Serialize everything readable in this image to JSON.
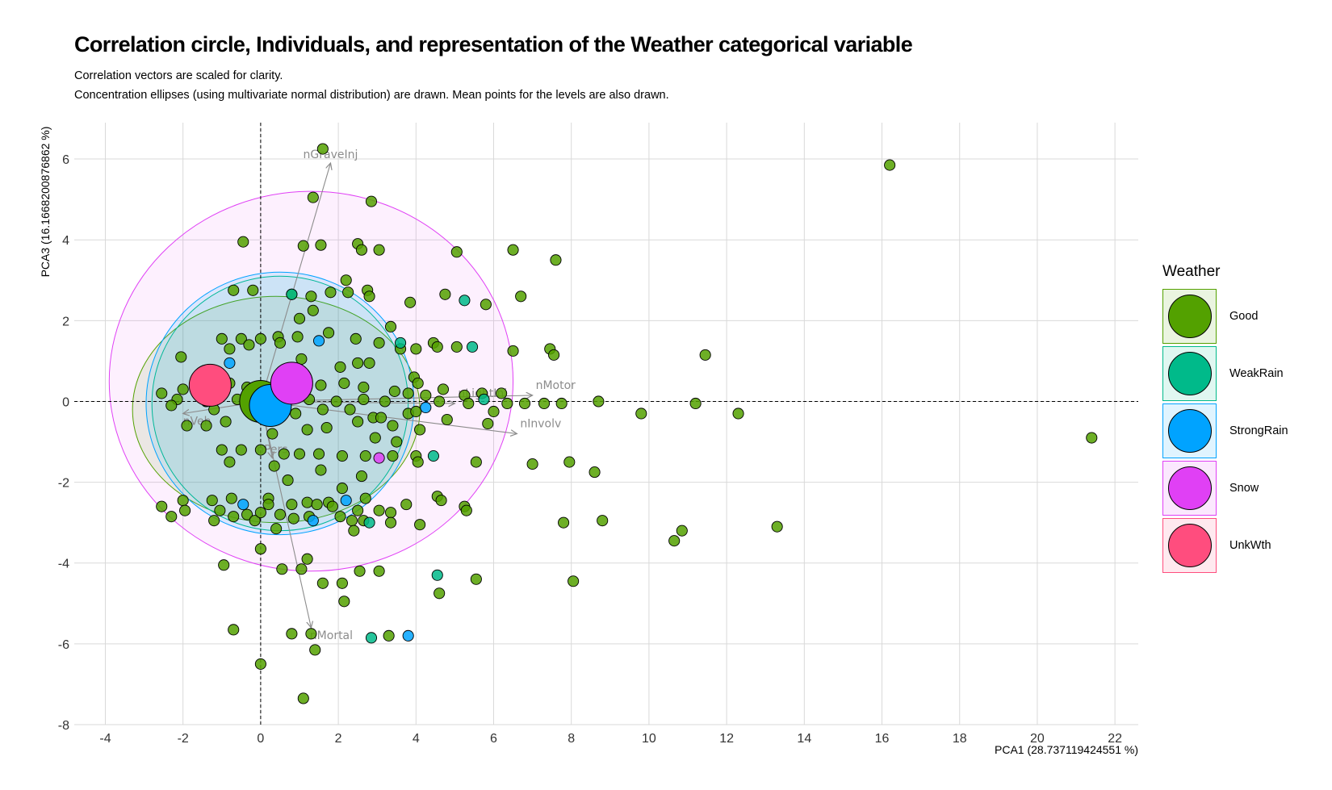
{
  "title": "Correlation circle, Individuals, and representation of the Weather categorical variable",
  "subtitle_lines": [
    "Correlation vectors are scaled for clarity.",
    "Concentration ellipses (using multivariate normal distribution) are drawn. Mean points for the levels are also drawn."
  ],
  "chart_data": {
    "type": "scatter",
    "title": "Correlation circle, Individuals, and representation of the Weather categorical variable",
    "xlabel": "PCA1 (28.737119424551 %)",
    "ylabel": "PCA3 (16.1668200876862 %)",
    "xlim": [
      -4.8,
      22.6
    ],
    "ylim": [
      -8.0,
      6.9
    ],
    "x_ticks": [
      -4,
      -2,
      0,
      2,
      4,
      6,
      8,
      10,
      12,
      14,
      16,
      18,
      20,
      22
    ],
    "y_ticks": [
      -8,
      -6,
      -4,
      -2,
      0,
      2,
      4,
      6
    ],
    "grid": true,
    "legend_title": "Weather",
    "legend_position": "right",
    "levels": [
      {
        "name": "Good",
        "color": "#53A100"
      },
      {
        "name": "WeakRain",
        "color": "#00BA8A"
      },
      {
        "name": "StrongRain",
        "color": "#00A3FF"
      },
      {
        "name": "Snow",
        "color": "#E040F5"
      },
      {
        "name": "UnkWth",
        "color": "#FF4D7E"
      }
    ],
    "variables": [
      {
        "name": "nGraveInj",
        "x": 1.8,
        "y": 5.9
      },
      {
        "name": "nMotor",
        "x": 7.0,
        "y": 0.15
      },
      {
        "name": "nInvolv",
        "x": 6.6,
        "y": -0.8
      },
      {
        "name": "nMortal",
        "x": 1.3,
        "y": -5.6
      },
      {
        "name": "nLightInj",
        "x": 5.0,
        "y": -0.05
      },
      {
        "name": "nPers",
        "x": 0.3,
        "y": -1.4
      },
      {
        "name": "nVeh",
        "x": -2.0,
        "y": -0.3
      }
    ],
    "ellipses": [
      {
        "level": "Snow",
        "cx": 1.3,
        "cy": 0.5,
        "rx": 5.2,
        "ry": 4.7
      },
      {
        "level": "Good",
        "cx": 0.4,
        "cy": -0.2,
        "rx": 3.7,
        "ry": 2.8
      },
      {
        "level": "WeakRain",
        "cx": 0.5,
        "cy": -0.05,
        "rx": 3.3,
        "ry": 3.15
      },
      {
        "level": "StrongRain",
        "cx": 0.5,
        "cy": -0.05,
        "rx": 3.45,
        "ry": 3.25
      }
    ],
    "means": [
      {
        "level": "UnkWth",
        "x": -1.3,
        "y": 0.4
      },
      {
        "level": "Good",
        "x": 0.0,
        "y": 0.0
      },
      {
        "level": "StrongRain",
        "x": 0.25,
        "y": -0.1
      },
      {
        "level": "Snow",
        "x": 0.8,
        "y": 0.45
      }
    ],
    "points": [
      {
        "level": "Good",
        "x": 16.2,
        "y": 5.85
      },
      {
        "level": "Good",
        "x": 21.4,
        "y": -0.9
      },
      {
        "level": "Good",
        "x": 1.6,
        "y": 6.25
      },
      {
        "level": "Good",
        "x": 1.35,
        "y": 5.05
      },
      {
        "level": "Good",
        "x": 2.85,
        "y": 4.95
      },
      {
        "level": "Good",
        "x": -0.45,
        "y": 3.95
      },
      {
        "level": "Good",
        "x": 1.1,
        "y": 3.85
      },
      {
        "level": "Good",
        "x": 1.55,
        "y": 3.87
      },
      {
        "level": "Good",
        "x": 2.5,
        "y": 3.9
      },
      {
        "level": "Good",
        "x": 2.6,
        "y": 3.75
      },
      {
        "level": "Good",
        "x": 3.05,
        "y": 3.75
      },
      {
        "level": "Good",
        "x": 5.05,
        "y": 3.7
      },
      {
        "level": "Good",
        "x": 6.5,
        "y": 3.75
      },
      {
        "level": "Good",
        "x": 7.6,
        "y": 3.5
      },
      {
        "level": "Good",
        "x": 2.2,
        "y": 3.0
      },
      {
        "level": "Good",
        "x": -0.7,
        "y": 2.75
      },
      {
        "level": "Good",
        "x": -0.2,
        "y": 2.75
      },
      {
        "level": "Good",
        "x": 0.8,
        "y": 2.65
      },
      {
        "level": "Good",
        "x": 1.3,
        "y": 2.6
      },
      {
        "level": "Good",
        "x": 1.8,
        "y": 2.7
      },
      {
        "level": "Good",
        "x": 2.25,
        "y": 2.7
      },
      {
        "level": "Good",
        "x": 2.75,
        "y": 2.75
      },
      {
        "level": "Good",
        "x": 2.8,
        "y": 2.6
      },
      {
        "level": "Good",
        "x": 3.85,
        "y": 2.45
      },
      {
        "level": "Good",
        "x": 4.75,
        "y": 2.65
      },
      {
        "level": "Good",
        "x": 6.7,
        "y": 2.6
      },
      {
        "level": "Good",
        "x": 5.8,
        "y": 2.4
      },
      {
        "level": "Good",
        "x": 1.0,
        "y": 2.05
      },
      {
        "level": "Good",
        "x": 1.35,
        "y": 2.25
      },
      {
        "level": "Good",
        "x": 3.35,
        "y": 1.85
      },
      {
        "level": "Good",
        "x": -1.0,
        "y": 1.55
      },
      {
        "level": "Good",
        "x": -0.5,
        "y": 1.55
      },
      {
        "level": "Good",
        "x": 0.0,
        "y": 1.55
      },
      {
        "level": "Good",
        "x": 0.45,
        "y": 1.6
      },
      {
        "level": "Good",
        "x": 0.95,
        "y": 1.6
      },
      {
        "level": "Good",
        "x": 1.75,
        "y": 1.7
      },
      {
        "level": "Good",
        "x": 2.45,
        "y": 1.55
      },
      {
        "level": "Good",
        "x": 3.05,
        "y": 1.45
      },
      {
        "level": "Good",
        "x": 3.6,
        "y": 1.3
      },
      {
        "level": "Good",
        "x": 4.0,
        "y": 1.3
      },
      {
        "level": "Good",
        "x": 4.45,
        "y": 1.45
      },
      {
        "level": "Good",
        "x": 4.55,
        "y": 1.35
      },
      {
        "level": "Good",
        "x": 5.05,
        "y": 1.35
      },
      {
        "level": "Good",
        "x": 6.5,
        "y": 1.25
      },
      {
        "level": "Good",
        "x": 7.45,
        "y": 1.3
      },
      {
        "level": "Good",
        "x": 7.55,
        "y": 1.15
      },
      {
        "level": "Good",
        "x": 11.45,
        "y": 1.15
      },
      {
        "level": "Good",
        "x": -2.05,
        "y": 1.1
      },
      {
        "level": "Good",
        "x": -0.8,
        "y": 1.3
      },
      {
        "level": "Good",
        "x": -0.3,
        "y": 1.4
      },
      {
        "level": "Good",
        "x": 0.5,
        "y": 1.45
      },
      {
        "level": "Good",
        "x": 1.05,
        "y": 1.05
      },
      {
        "level": "Good",
        "x": 2.05,
        "y": 0.85
      },
      {
        "level": "Good",
        "x": 2.5,
        "y": 0.95
      },
      {
        "level": "Good",
        "x": 2.8,
        "y": 0.95
      },
      {
        "level": "Good",
        "x": 3.95,
        "y": 0.6
      },
      {
        "level": "Good",
        "x": 4.05,
        "y": 0.45
      },
      {
        "level": "Good",
        "x": -2.0,
        "y": 0.3
      },
      {
        "level": "Good",
        "x": -1.6,
        "y": 0.35
      },
      {
        "level": "Good",
        "x": -0.8,
        "y": 0.45
      },
      {
        "level": "Good",
        "x": -0.35,
        "y": 0.35
      },
      {
        "level": "Good",
        "x": 0.2,
        "y": 0.3
      },
      {
        "level": "Good",
        "x": 1.0,
        "y": 0.55
      },
      {
        "level": "Good",
        "x": 1.55,
        "y": 0.4
      },
      {
        "level": "Good",
        "x": 2.15,
        "y": 0.45
      },
      {
        "level": "Good",
        "x": 2.65,
        "y": 0.35
      },
      {
        "level": "Good",
        "x": 3.45,
        "y": 0.25
      },
      {
        "level": "Good",
        "x": 3.8,
        "y": 0.2
      },
      {
        "level": "Good",
        "x": 4.25,
        "y": 0.15
      },
      {
        "level": "Good",
        "x": 4.7,
        "y": 0.3
      },
      {
        "level": "Good",
        "x": 5.25,
        "y": 0.15
      },
      {
        "level": "Good",
        "x": 5.7,
        "y": 0.2
      },
      {
        "level": "Good",
        "x": 6.2,
        "y": 0.2
      },
      {
        "level": "Good",
        "x": -2.55,
        "y": 0.2
      },
      {
        "level": "Good",
        "x": -2.15,
        "y": 0.05
      },
      {
        "level": "Good",
        "x": -1.4,
        "y": 0.0
      },
      {
        "level": "Good",
        "x": -0.6,
        "y": 0.05
      },
      {
        "level": "Good",
        "x": 0.55,
        "y": 0.0
      },
      {
        "level": "Good",
        "x": 1.25,
        "y": 0.05
      },
      {
        "level": "Good",
        "x": 1.95,
        "y": 0.0
      },
      {
        "level": "Good",
        "x": 2.65,
        "y": 0.05
      },
      {
        "level": "Good",
        "x": 3.2,
        "y": 0.0
      },
      {
        "level": "Good",
        "x": 4.6,
        "y": 0.0
      },
      {
        "level": "Good",
        "x": 5.35,
        "y": -0.05
      },
      {
        "level": "Good",
        "x": 6.35,
        "y": -0.05
      },
      {
        "level": "Good",
        "x": 6.8,
        "y": -0.05
      },
      {
        "level": "Good",
        "x": 7.3,
        "y": -0.05
      },
      {
        "level": "Good",
        "x": 7.75,
        "y": -0.05
      },
      {
        "level": "Good",
        "x": 8.7,
        "y": 0.0
      },
      {
        "level": "Good",
        "x": 11.2,
        "y": -0.05
      },
      {
        "level": "Good",
        "x": -2.3,
        "y": -0.1
      },
      {
        "level": "Good",
        "x": -1.2,
        "y": -0.2
      },
      {
        "level": "Good",
        "x": 0.9,
        "y": -0.3
      },
      {
        "level": "Good",
        "x": 1.6,
        "y": -0.2
      },
      {
        "level": "Good",
        "x": 2.3,
        "y": -0.2
      },
      {
        "level": "Good",
        "x": 2.9,
        "y": -0.4
      },
      {
        "level": "Good",
        "x": 3.1,
        "y": -0.4
      },
      {
        "level": "Good",
        "x": 3.8,
        "y": -0.3
      },
      {
        "level": "Good",
        "x": 4.0,
        "y": -0.25
      },
      {
        "level": "Good",
        "x": 4.8,
        "y": -0.45
      },
      {
        "level": "Good",
        "x": 6.0,
        "y": -0.25
      },
      {
        "level": "Good",
        "x": 9.8,
        "y": -0.3
      },
      {
        "level": "Good",
        "x": 12.3,
        "y": -0.3
      },
      {
        "level": "Good",
        "x": -1.9,
        "y": -0.6
      },
      {
        "level": "Good",
        "x": -1.4,
        "y": -0.6
      },
      {
        "level": "Good",
        "x": -0.9,
        "y": -0.5
      },
      {
        "level": "Good",
        "x": 1.2,
        "y": -0.7
      },
      {
        "level": "Good",
        "x": 1.7,
        "y": -0.65
      },
      {
        "level": "Good",
        "x": 2.5,
        "y": -0.5
      },
      {
        "level": "Good",
        "x": 3.4,
        "y": -0.6
      },
      {
        "level": "Good",
        "x": 4.1,
        "y": -0.7
      },
      {
        "level": "Good",
        "x": 5.85,
        "y": -0.55
      },
      {
        "level": "Good",
        "x": 0.3,
        "y": -0.8
      },
      {
        "level": "Good",
        "x": 2.95,
        "y": -0.9
      },
      {
        "level": "Good",
        "x": 3.5,
        "y": -1.0
      },
      {
        "level": "Good",
        "x": -1.0,
        "y": -1.2
      },
      {
        "level": "Good",
        "x": -0.5,
        "y": -1.2
      },
      {
        "level": "Good",
        "x": 0.0,
        "y": -1.2
      },
      {
        "level": "Good",
        "x": 0.6,
        "y": -1.3
      },
      {
        "level": "Good",
        "x": 1.0,
        "y": -1.3
      },
      {
        "level": "Good",
        "x": 1.5,
        "y": -1.3
      },
      {
        "level": "Good",
        "x": 2.1,
        "y": -1.35
      },
      {
        "level": "Good",
        "x": 2.7,
        "y": -1.35
      },
      {
        "level": "Good",
        "x": 3.4,
        "y": -1.35
      },
      {
        "level": "Good",
        "x": 4.0,
        "y": -1.35
      },
      {
        "level": "Good",
        "x": 4.05,
        "y": -1.5
      },
      {
        "level": "Good",
        "x": 5.55,
        "y": -1.5
      },
      {
        "level": "Good",
        "x": 7.0,
        "y": -1.55
      },
      {
        "level": "Good",
        "x": 7.95,
        "y": -1.5
      },
      {
        "level": "Good",
        "x": 8.6,
        "y": -1.75
      },
      {
        "level": "Good",
        "x": -0.8,
        "y": -1.5
      },
      {
        "level": "Good",
        "x": 0.35,
        "y": -1.6
      },
      {
        "level": "Good",
        "x": 1.55,
        "y": -1.7
      },
      {
        "level": "Good",
        "x": 0.7,
        "y": -1.95
      },
      {
        "level": "Good",
        "x": 2.6,
        "y": -1.85
      },
      {
        "level": "Good",
        "x": 2.1,
        "y": -2.15
      },
      {
        "level": "Good",
        "x": -2.55,
        "y": -2.6
      },
      {
        "level": "Good",
        "x": -2.3,
        "y": -2.85
      },
      {
        "level": "Good",
        "x": -2.0,
        "y": -2.45
      },
      {
        "level": "Good",
        "x": -1.95,
        "y": -2.7
      },
      {
        "level": "Good",
        "x": -1.25,
        "y": -2.45
      },
      {
        "level": "Good",
        "x": -1.05,
        "y": -2.7
      },
      {
        "level": "Good",
        "x": -0.75,
        "y": -2.4
      },
      {
        "level": "Good",
        "x": -0.7,
        "y": -2.85
      },
      {
        "level": "Good",
        "x": -0.35,
        "y": -2.8
      },
      {
        "level": "Good",
        "x": -0.15,
        "y": -2.95
      },
      {
        "level": "Good",
        "x": 0.2,
        "y": -2.4
      },
      {
        "level": "Good",
        "x": 0.2,
        "y": -2.55
      },
      {
        "level": "Good",
        "x": 0.0,
        "y": -2.75
      },
      {
        "level": "Good",
        "x": 0.5,
        "y": -2.8
      },
      {
        "level": "Good",
        "x": 0.8,
        "y": -2.55
      },
      {
        "level": "Good",
        "x": 0.85,
        "y": -2.9
      },
      {
        "level": "Good",
        "x": 1.2,
        "y": -2.5
      },
      {
        "level": "Good",
        "x": 1.25,
        "y": -2.85
      },
      {
        "level": "Good",
        "x": 1.45,
        "y": -2.55
      },
      {
        "level": "Good",
        "x": 1.75,
        "y": -2.5
      },
      {
        "level": "Good",
        "x": 1.85,
        "y": -2.6
      },
      {
        "level": "Good",
        "x": 2.05,
        "y": -2.85
      },
      {
        "level": "Good",
        "x": 2.35,
        "y": -2.95
      },
      {
        "level": "Good",
        "x": 2.5,
        "y": -2.7
      },
      {
        "level": "Good",
        "x": 2.65,
        "y": -2.95
      },
      {
        "level": "Good",
        "x": 2.7,
        "y": -2.4
      },
      {
        "level": "Good",
        "x": 3.05,
        "y": -2.7
      },
      {
        "level": "Good",
        "x": 3.35,
        "y": -2.75
      },
      {
        "level": "Good",
        "x": 3.35,
        "y": -3.0
      },
      {
        "level": "Good",
        "x": 3.75,
        "y": -2.55
      },
      {
        "level": "Good",
        "x": 4.1,
        "y": -3.05
      },
      {
        "level": "Good",
        "x": 4.55,
        "y": -2.35
      },
      {
        "level": "Good",
        "x": 4.65,
        "y": -2.45
      },
      {
        "level": "Good",
        "x": 5.25,
        "y": -2.6
      },
      {
        "level": "Good",
        "x": 5.3,
        "y": -2.7
      },
      {
        "level": "Good",
        "x": 7.8,
        "y": -3.0
      },
      {
        "level": "Good",
        "x": 8.8,
        "y": -2.95
      },
      {
        "level": "Good",
        "x": 13.3,
        "y": -3.1
      },
      {
        "level": "Good",
        "x": -1.2,
        "y": -2.95
      },
      {
        "level": "Good",
        "x": 0.4,
        "y": -3.15
      },
      {
        "level": "Good",
        "x": 2.4,
        "y": -3.2
      },
      {
        "level": "Good",
        "x": 10.65,
        "y": -3.45
      },
      {
        "level": "Good",
        "x": 10.85,
        "y": -3.2
      },
      {
        "level": "Good",
        "x": 0.0,
        "y": -3.65
      },
      {
        "level": "Good",
        "x": -0.95,
        "y": -4.05
      },
      {
        "level": "Good",
        "x": 0.55,
        "y": -4.15
      },
      {
        "level": "Good",
        "x": 1.05,
        "y": -4.15
      },
      {
        "level": "Good",
        "x": 1.2,
        "y": -3.9
      },
      {
        "level": "Good",
        "x": 2.55,
        "y": -4.2
      },
      {
        "level": "Good",
        "x": 3.05,
        "y": -4.2
      },
      {
        "level": "Good",
        "x": 1.6,
        "y": -4.5
      },
      {
        "level": "Good",
        "x": 2.1,
        "y": -4.5
      },
      {
        "level": "Good",
        "x": 2.15,
        "y": -4.95
      },
      {
        "level": "Good",
        "x": 5.55,
        "y": -4.4
      },
      {
        "level": "Good",
        "x": 8.05,
        "y": -4.45
      },
      {
        "level": "Good",
        "x": 4.6,
        "y": -4.75
      },
      {
        "level": "Good",
        "x": -0.7,
        "y": -5.65
      },
      {
        "level": "Good",
        "x": 0.8,
        "y": -5.75
      },
      {
        "level": "Good",
        "x": 1.3,
        "y": -5.75
      },
      {
        "level": "Good",
        "x": 1.4,
        "y": -6.15
      },
      {
        "level": "Good",
        "x": 3.3,
        "y": -5.8
      },
      {
        "level": "Good",
        "x": 0.0,
        "y": -6.5
      },
      {
        "level": "Good",
        "x": 1.1,
        "y": -7.35
      },
      {
        "level": "WeakRain",
        "x": 0.8,
        "y": 2.65
      },
      {
        "level": "WeakRain",
        "x": 5.25,
        "y": 2.5
      },
      {
        "level": "WeakRain",
        "x": 5.45,
        "y": 1.35
      },
      {
        "level": "WeakRain",
        "x": 3.6,
        "y": 1.45
      },
      {
        "level": "WeakRain",
        "x": 5.75,
        "y": 0.05
      },
      {
        "level": "WeakRain",
        "x": 4.45,
        "y": -1.35
      },
      {
        "level": "WeakRain",
        "x": 4.55,
        "y": -4.3
      },
      {
        "level": "WeakRain",
        "x": 2.85,
        "y": -5.85
      },
      {
        "level": "WeakRain",
        "x": 2.8,
        "y": -3.0
      },
      {
        "level": "StrongRain",
        "x": 1.5,
        "y": 1.5
      },
      {
        "level": "StrongRain",
        "x": -0.8,
        "y": 0.95
      },
      {
        "level": "StrongRain",
        "x": 4.25,
        "y": -0.15
      },
      {
        "level": "StrongRain",
        "x": 2.2,
        "y": -2.45
      },
      {
        "level": "StrongRain",
        "x": -0.45,
        "y": -2.55
      },
      {
        "level": "StrongRain",
        "x": 1.35,
        "y": -2.95
      },
      {
        "level": "StrongRain",
        "x": 3.8,
        "y": -5.8
      },
      {
        "level": "Snow",
        "x": 3.05,
        "y": -1.4
      }
    ]
  }
}
